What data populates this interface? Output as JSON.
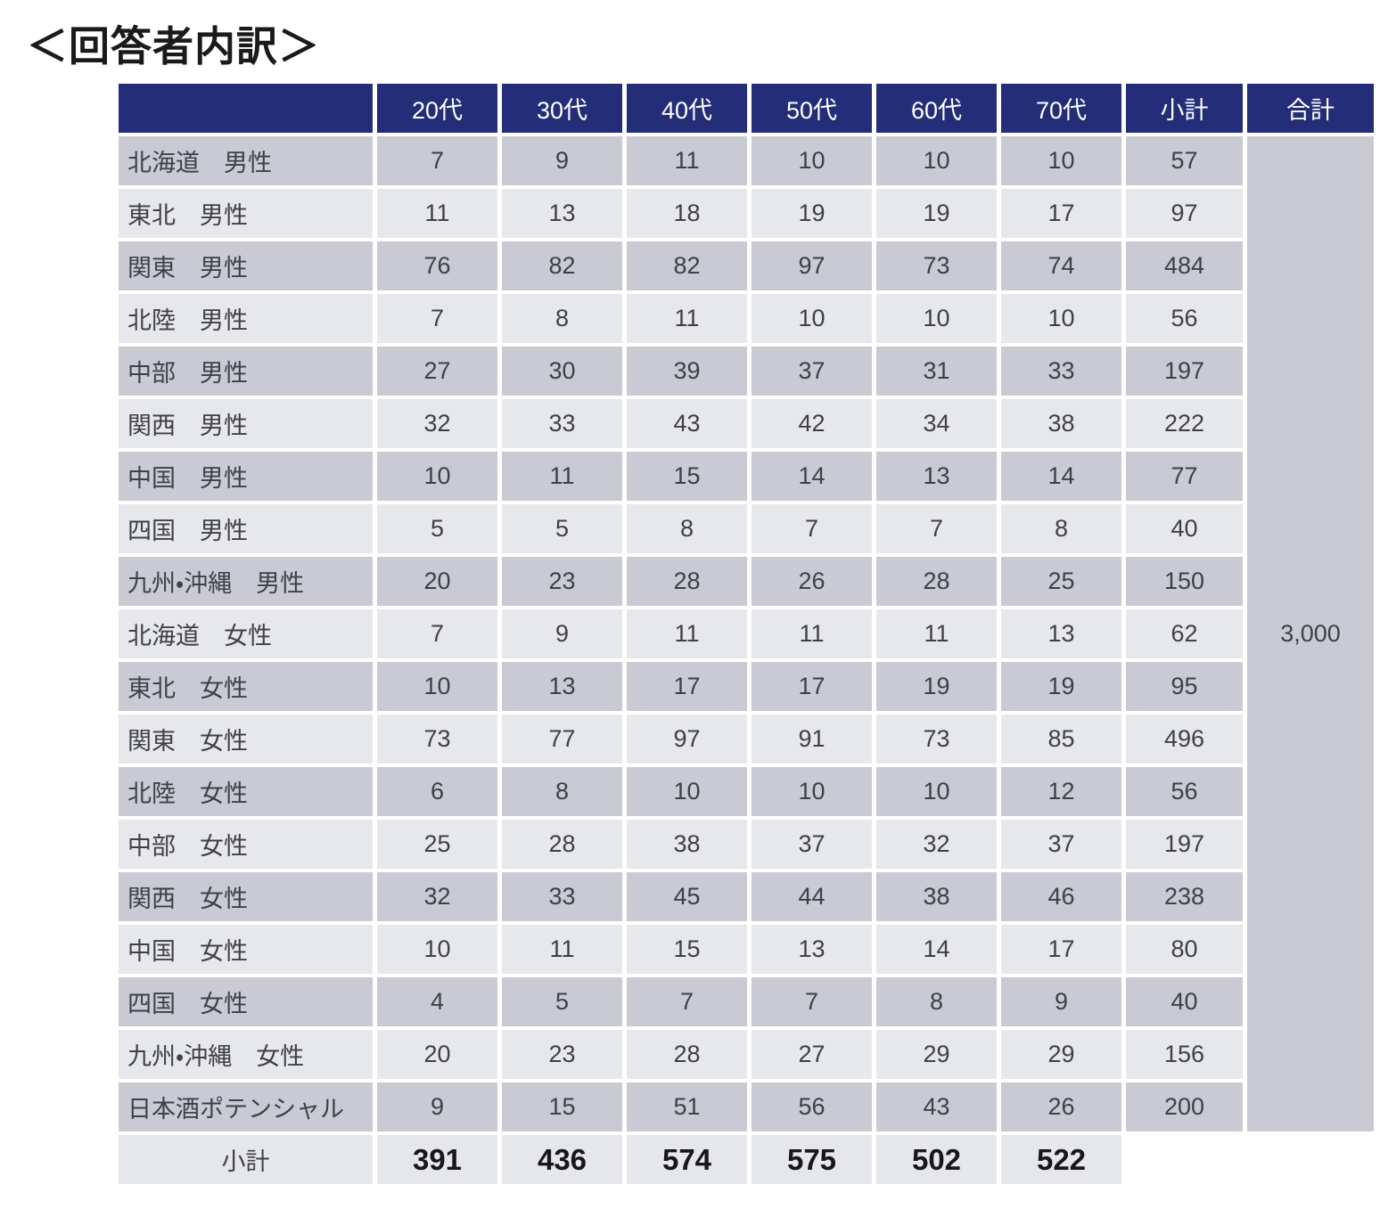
{
  "header": {
    "title": "＜回答者内訳＞"
  },
  "chart_data": {
    "type": "table",
    "title": "＜回答者内訳＞",
    "age_columns": [
      "20代",
      "30代",
      "40代",
      "50代",
      "60代",
      "70代"
    ],
    "subtotal_label": "小計",
    "total_label": "合計",
    "rows": [
      {
        "label": "北海道　男性",
        "values": [
          7,
          9,
          11,
          10,
          10,
          10
        ],
        "subtotal": 57
      },
      {
        "label": "東北　男性",
        "values": [
          11,
          13,
          18,
          19,
          19,
          17
        ],
        "subtotal": 97
      },
      {
        "label": "関東　男性",
        "values": [
          76,
          82,
          82,
          97,
          73,
          74
        ],
        "subtotal": 484
      },
      {
        "label": "北陸　男性",
        "values": [
          7,
          8,
          11,
          10,
          10,
          10
        ],
        "subtotal": 56
      },
      {
        "label": "中部　男性",
        "values": [
          27,
          30,
          39,
          37,
          31,
          33
        ],
        "subtotal": 197
      },
      {
        "label": "関西　男性",
        "values": [
          32,
          33,
          43,
          42,
          34,
          38
        ],
        "subtotal": 222
      },
      {
        "label": "中国　男性",
        "values": [
          10,
          11,
          15,
          14,
          13,
          14
        ],
        "subtotal": 77
      },
      {
        "label": "四国　男性",
        "values": [
          5,
          5,
          8,
          7,
          7,
          8
        ],
        "subtotal": 40
      },
      {
        "label": "九州・沖縄　男性",
        "values": [
          20,
          23,
          28,
          26,
          28,
          25
        ],
        "subtotal": 150
      },
      {
        "label": "北海道　女性",
        "values": [
          7,
          9,
          11,
          11,
          11,
          13
        ],
        "subtotal": 62
      },
      {
        "label": "東北　女性",
        "values": [
          10,
          13,
          17,
          17,
          19,
          19
        ],
        "subtotal": 95
      },
      {
        "label": "関東　女性",
        "values": [
          73,
          77,
          97,
          91,
          73,
          85
        ],
        "subtotal": 496
      },
      {
        "label": "北陸　女性",
        "values": [
          6,
          8,
          10,
          10,
          10,
          12
        ],
        "subtotal": 56
      },
      {
        "label": "中部　女性",
        "values": [
          25,
          28,
          38,
          37,
          32,
          37
        ],
        "subtotal": 197
      },
      {
        "label": "関西　女性",
        "values": [
          32,
          33,
          45,
          44,
          38,
          46
        ],
        "subtotal": 238
      },
      {
        "label": "中国　女性",
        "values": [
          10,
          11,
          15,
          13,
          14,
          17
        ],
        "subtotal": 80
      },
      {
        "label": "四国　女性",
        "values": [
          4,
          5,
          7,
          7,
          8,
          9
        ],
        "subtotal": 40
      },
      {
        "label": "九州・沖縄　女性",
        "values": [
          20,
          23,
          28,
          27,
          29,
          29
        ],
        "subtotal": 156
      },
      {
        "label": "日本酒ポテンシャル",
        "values": [
          9,
          15,
          51,
          56,
          43,
          26
        ],
        "subtotal": 200
      }
    ],
    "footer": {
      "label": "小計",
      "values": [
        391,
        436,
        574,
        575,
        502,
        522
      ]
    },
    "grand_total": "3,000"
  },
  "colors": {
    "header_bg": "#242E78",
    "header_text": "#FFFFFF",
    "row_dark": "#C9CAD3",
    "row_light": "#E7E8EC",
    "footer_bg": "#E6E7EB",
    "cell_text": "#3F3F46",
    "footer_text": "#17171C",
    "title_text": "#1A1A1A",
    "page_bg": "#FFFFFF"
  }
}
